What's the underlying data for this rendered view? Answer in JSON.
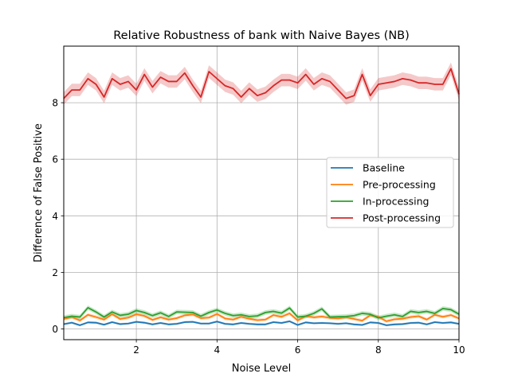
{
  "chart_data": {
    "type": "line",
    "title": "Relative Robustness of bank with Naive Bayes (NB)",
    "xlabel": "Noise Level",
    "ylabel": "Difference of False Positive",
    "xlim": [
      0.2,
      10.0
    ],
    "ylim": [
      -0.38,
      10.0
    ],
    "xticks": [
      2,
      4,
      6,
      8,
      10
    ],
    "yticks": [
      0,
      2,
      4,
      6,
      8
    ],
    "grid": true,
    "legend_position": "center-right",
    "x": [
      0.2,
      0.4,
      0.6,
      0.8,
      1.0,
      1.2,
      1.4,
      1.6,
      1.8,
      2.0,
      2.2,
      2.4,
      2.6,
      2.8,
      3.0,
      3.2,
      3.4,
      3.6,
      3.8,
      4.0,
      4.2,
      4.4,
      4.6,
      4.8,
      5.0,
      5.2,
      5.4,
      5.6,
      5.8,
      6.0,
      6.2,
      6.4,
      6.6,
      6.8,
      7.0,
      7.2,
      7.4,
      7.6,
      7.8,
      8.0,
      8.2,
      8.4,
      8.6,
      8.8,
      9.0,
      9.2,
      9.4,
      9.6,
      9.8,
      10.0
    ],
    "series": [
      {
        "name": "Baseline",
        "color": "#1f77b4",
        "band": 0.04,
        "values": [
          0.17,
          0.22,
          0.13,
          0.23,
          0.22,
          0.15,
          0.24,
          0.17,
          0.19,
          0.25,
          0.22,
          0.16,
          0.21,
          0.16,
          0.18,
          0.24,
          0.25,
          0.19,
          0.19,
          0.26,
          0.18,
          0.16,
          0.21,
          0.18,
          0.16,
          0.16,
          0.24,
          0.21,
          0.27,
          0.14,
          0.23,
          0.2,
          0.21,
          0.2,
          0.18,
          0.2,
          0.16,
          0.14,
          0.23,
          0.21,
          0.13,
          0.16,
          0.17,
          0.21,
          0.22,
          0.16,
          0.24,
          0.21,
          0.23,
          0.18
        ]
      },
      {
        "name": "Pre-processing",
        "color": "#ff7f0e",
        "band": 0.06,
        "values": [
          0.35,
          0.42,
          0.3,
          0.5,
          0.42,
          0.33,
          0.52,
          0.35,
          0.4,
          0.52,
          0.46,
          0.32,
          0.41,
          0.33,
          0.38,
          0.48,
          0.51,
          0.38,
          0.4,
          0.53,
          0.37,
          0.33,
          0.43,
          0.36,
          0.31,
          0.33,
          0.49,
          0.43,
          0.55,
          0.3,
          0.45,
          0.41,
          0.44,
          0.39,
          0.37,
          0.41,
          0.35,
          0.29,
          0.48,
          0.43,
          0.27,
          0.34,
          0.36,
          0.42,
          0.45,
          0.33,
          0.5,
          0.43,
          0.49,
          0.37
        ]
      },
      {
        "name": "In-processing",
        "color": "#2ca02c",
        "band": 0.08,
        "values": [
          0.4,
          0.45,
          0.42,
          0.75,
          0.6,
          0.42,
          0.6,
          0.48,
          0.52,
          0.65,
          0.58,
          0.47,
          0.57,
          0.44,
          0.6,
          0.59,
          0.58,
          0.45,
          0.58,
          0.67,
          0.55,
          0.47,
          0.5,
          0.44,
          0.46,
          0.58,
          0.62,
          0.56,
          0.74,
          0.42,
          0.45,
          0.55,
          0.71,
          0.42,
          0.43,
          0.44,
          0.47,
          0.55,
          0.52,
          0.39,
          0.45,
          0.5,
          0.44,
          0.62,
          0.58,
          0.62,
          0.55,
          0.72,
          0.68,
          0.52
        ]
      },
      {
        "name": "Post-processing",
        "color": "#d62728",
        "band": 0.22,
        "values": [
          8.15,
          8.45,
          8.45,
          8.85,
          8.65,
          8.2,
          8.85,
          8.65,
          8.75,
          8.45,
          9.0,
          8.55,
          8.9,
          8.75,
          8.75,
          9.05,
          8.6,
          8.2,
          9.1,
          8.85,
          8.6,
          8.5,
          8.2,
          8.5,
          8.25,
          8.35,
          8.6,
          8.8,
          8.8,
          8.7,
          9.0,
          8.65,
          8.85,
          8.75,
          8.45,
          8.15,
          8.25,
          9.0,
          8.25,
          8.65,
          8.7,
          8.75,
          8.85,
          8.8,
          8.7,
          8.7,
          8.65,
          8.65,
          9.2,
          8.3
        ]
      }
    ]
  }
}
